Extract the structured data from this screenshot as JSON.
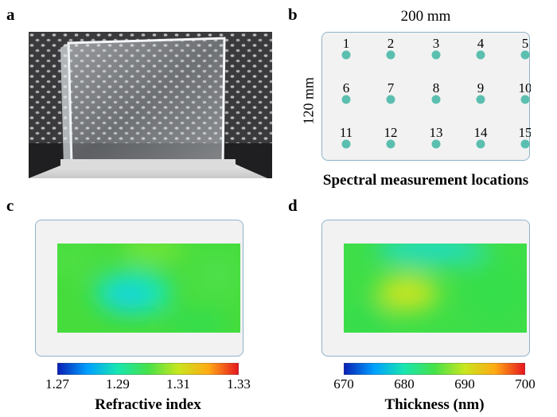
{
  "panels": {
    "a": {
      "letter": "a"
    },
    "b": {
      "letter": "b",
      "width_label": "200 mm",
      "height_label": "120 mm",
      "points": [
        "1",
        "2",
        "3",
        "4",
        "5",
        "6",
        "7",
        "8",
        "9",
        "10",
        "11",
        "12",
        "13",
        "14",
        "15"
      ],
      "point_color": "#5bbfb0",
      "caption": "Spectral measurement locations"
    },
    "c": {
      "letter": "c",
      "colorbar_ticks": [
        "1.27",
        "1.29",
        "1.31",
        "1.33"
      ],
      "colorbar_range": [
        1.27,
        1.33
      ],
      "caption": "Refractive index"
    },
    "d": {
      "letter": "d",
      "colorbar_ticks": [
        "670",
        "680",
        "690",
        "700"
      ],
      "colorbar_range": [
        670,
        700
      ],
      "caption": "Thickness (nm)"
    }
  },
  "colormap": [
    "#0a1eb4",
    "#00a0ff",
    "#18e6b0",
    "#46e14a",
    "#c8e61e",
    "#ffaa14",
    "#e6141e"
  ],
  "frame_color": "#8fb3c9"
}
